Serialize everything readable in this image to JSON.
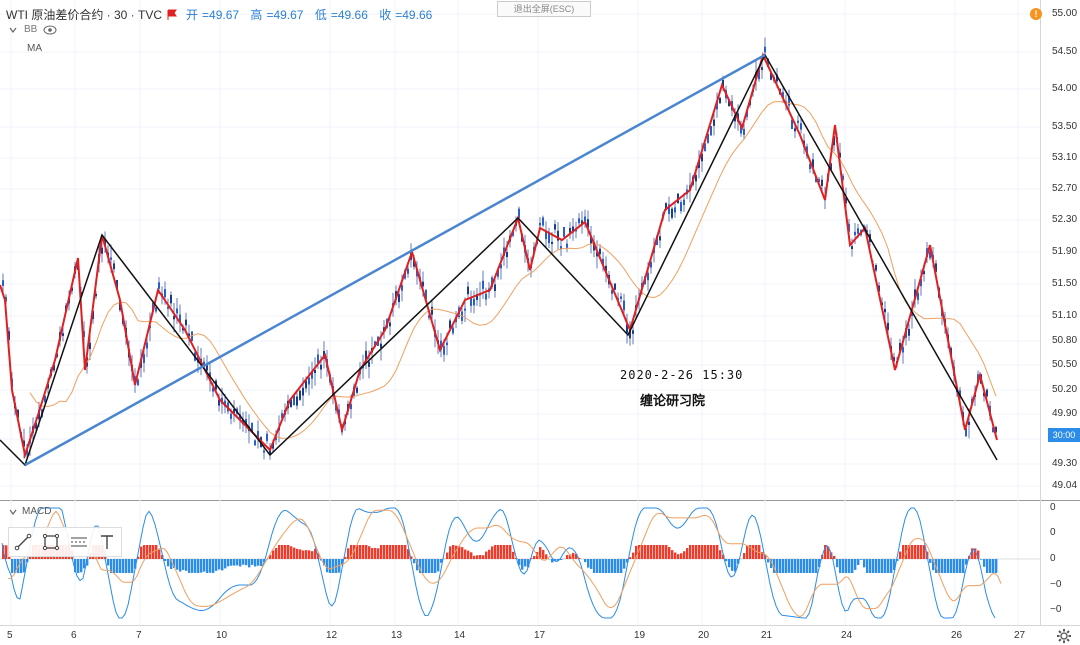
{
  "header": {
    "symbol": "WTI 原油差价合约 · 30 · TVC",
    "open_label": "开",
    "open": "=49.67",
    "high_label": "高",
    "high": "=49.67",
    "low_label": "低",
    "low": "=49.66",
    "close_label": "收",
    "close": "=49.66"
  },
  "indicators": {
    "bb_label": "BB",
    "ma_label": "MA"
  },
  "exit_fullscreen": "退出全屏(ESC)",
  "alert_badge": "!",
  "current_price_tag": "30:00",
  "annotation": {
    "datetime": "2020-2-26 15:30",
    "author": "缠论研习院"
  },
  "macd_label": "MACD",
  "price_axis": [
    "55.00",
    "54.50",
    "54.00",
    "53.50",
    "53.10",
    "52.70",
    "52.30",
    "51.90",
    "51.50",
    "51.10",
    "50.80",
    "50.50",
    "50.20",
    "49.90",
    "49.60",
    "49.30",
    "49.04"
  ],
  "macd_axis": [
    "0",
    "0",
    "0",
    "−0",
    "−0"
  ],
  "time_axis": [
    "5",
    "6",
    "7",
    "10",
    "12",
    "13",
    "14",
    "17",
    "19",
    "20",
    "21",
    "24",
    "26",
    "27"
  ],
  "colors": {
    "candle_up": "#2b5fc8",
    "zigzag_red": "#e02020",
    "zigzag_black": "#111111",
    "trend_blue": "#4a86d0",
    "ma": "#f0a060",
    "macd_pos": "#ef3b2c",
    "macd_neg": "#2b8de8"
  }
}
